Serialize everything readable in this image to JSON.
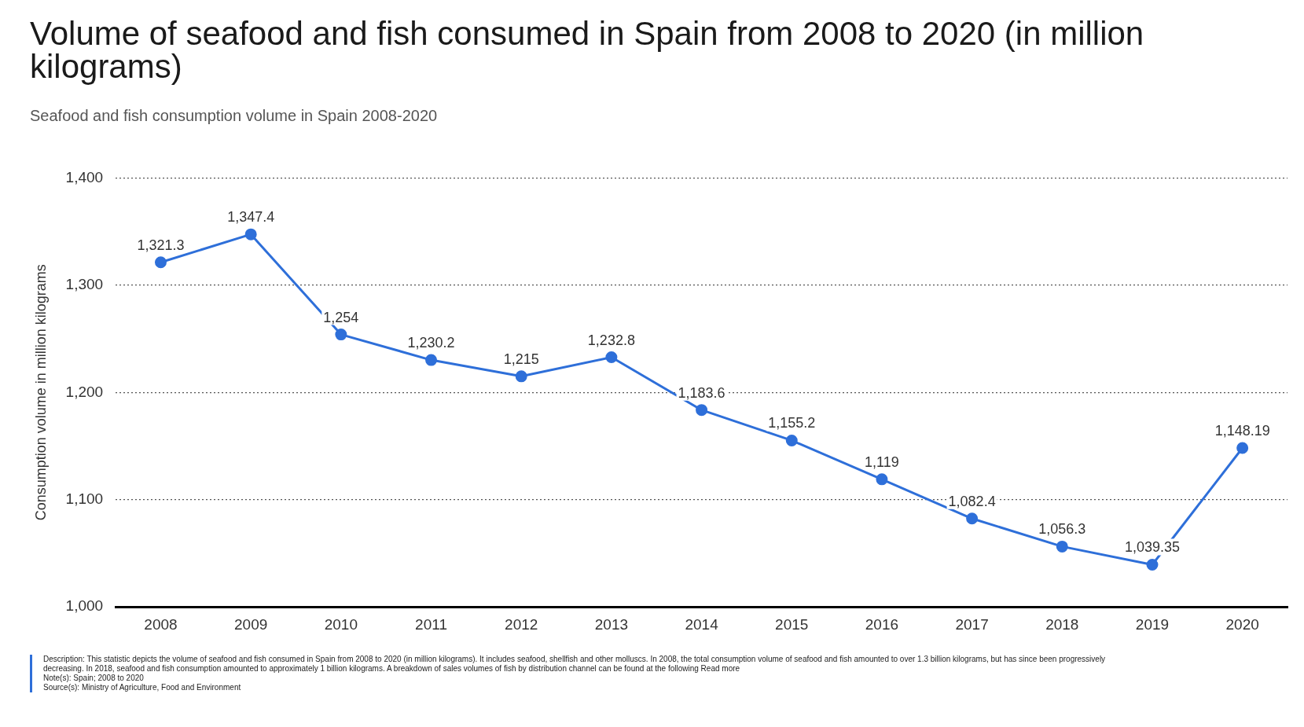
{
  "chart_data": {
    "type": "line",
    "title": "Volume of seafood and fish consumed in Spain from 2008 to 2020 (in million kilograms)",
    "subtitle": "Seafood and fish consumption volume in Spain 2008-2020",
    "ylabel": "Consumption volume in million kilograms",
    "categories": [
      "2008",
      "2009",
      "2010",
      "2011",
      "2012",
      "2013",
      "2014",
      "2015",
      "2016",
      "2017",
      "2018",
      "2019",
      "2020"
    ],
    "series": [
      {
        "color": "#2e6fd9",
        "values": [
          1321.3,
          1347.4,
          1254,
          1230.2,
          1215,
          1232.8,
          1183.6,
          1155.2,
          1119,
          1082.4,
          1056.3,
          1039.35,
          1148.19
        ],
        "value_labels": [
          "1,321.3",
          "1,347.4",
          "1,254",
          "1,230.2",
          "1,215",
          "1,232.8",
          "1,183.6",
          "1,155.2",
          "1,119",
          "1,082.4",
          "1,056.3",
          "1,039.35",
          "1,148.19"
        ]
      }
    ],
    "ylim": [
      1000,
      1400
    ],
    "yticks": [
      {
        "value": 1000,
        "label": "1,000"
      },
      {
        "value": 1100,
        "label": "1,100"
      },
      {
        "value": 1200,
        "label": "1,200"
      },
      {
        "value": 1300,
        "label": "1,300"
      },
      {
        "value": 1400,
        "label": "1,400"
      }
    ],
    "grid": "y",
    "legend": false,
    "marker": "circle",
    "line_style": "solid",
    "annotations": [
      "Description: This statistic depicts the volume of seafood and fish consumed in Spain from 2008 to 2020 (in million kilograms). It includes seafood, shellfish and other molluscs. In 2008, the total consumption volume of seafood and fish amounted to over 1.3 billion kilograms, but has since been progressively decreasing. In 2018, seafood and fish consumption amounted to approximately 1 billion kilograms. A breakdown of sales volumes of fish by distribution channel can be found at the following Read more",
      "Note(s): Spain; 2008 to 2020",
      "Source(s): Ministry of Agriculture, Food and Environment"
    ]
  }
}
